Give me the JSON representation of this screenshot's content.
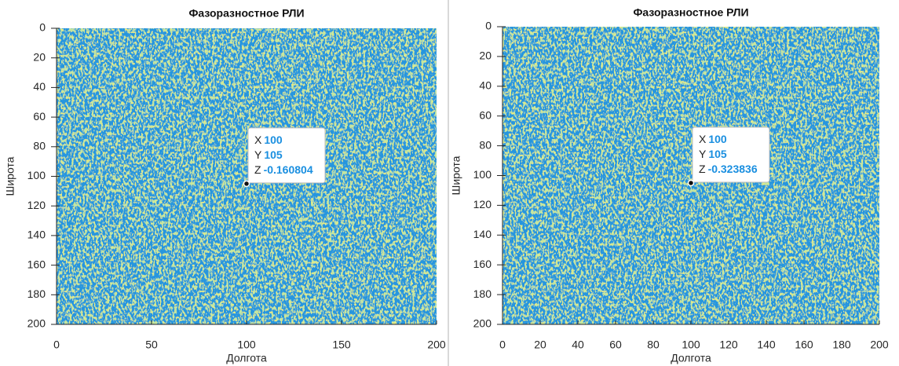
{
  "chart_data": [
    {
      "type": "image",
      "title": "Фазоразностное РЛИ",
      "xlabel": "Долгота",
      "ylabel": "Широта",
      "xlim": [
        0,
        200
      ],
      "ylim": [
        0,
        200
      ],
      "y_reversed": true,
      "xticks": [
        0,
        50,
        100,
        150,
        200
      ],
      "yticks": [
        0,
        20,
        40,
        60,
        80,
        100,
        120,
        140,
        160,
        180,
        200
      ],
      "datatip": {
        "labels": [
          "X",
          "Y",
          "Z"
        ],
        "values": [
          100,
          105,
          -0.160804
        ]
      }
    },
    {
      "type": "image",
      "title": "Фазоразностное РЛИ",
      "xlabel": "Долгота",
      "ylabel": "Широта",
      "xlim": [
        0,
        200
      ],
      "ylim": [
        0,
        200
      ],
      "y_reversed": true,
      "xticks": [
        0,
        20,
        40,
        60,
        80,
        100,
        120,
        140,
        160,
        180,
        200
      ],
      "yticks": [
        0,
        20,
        40,
        60,
        80,
        100,
        120,
        140,
        160,
        180,
        200
      ],
      "datatip": {
        "labels": [
          "X",
          "Y",
          "Z"
        ],
        "values": [
          100,
          105,
          -0.323836
        ]
      }
    }
  ]
}
